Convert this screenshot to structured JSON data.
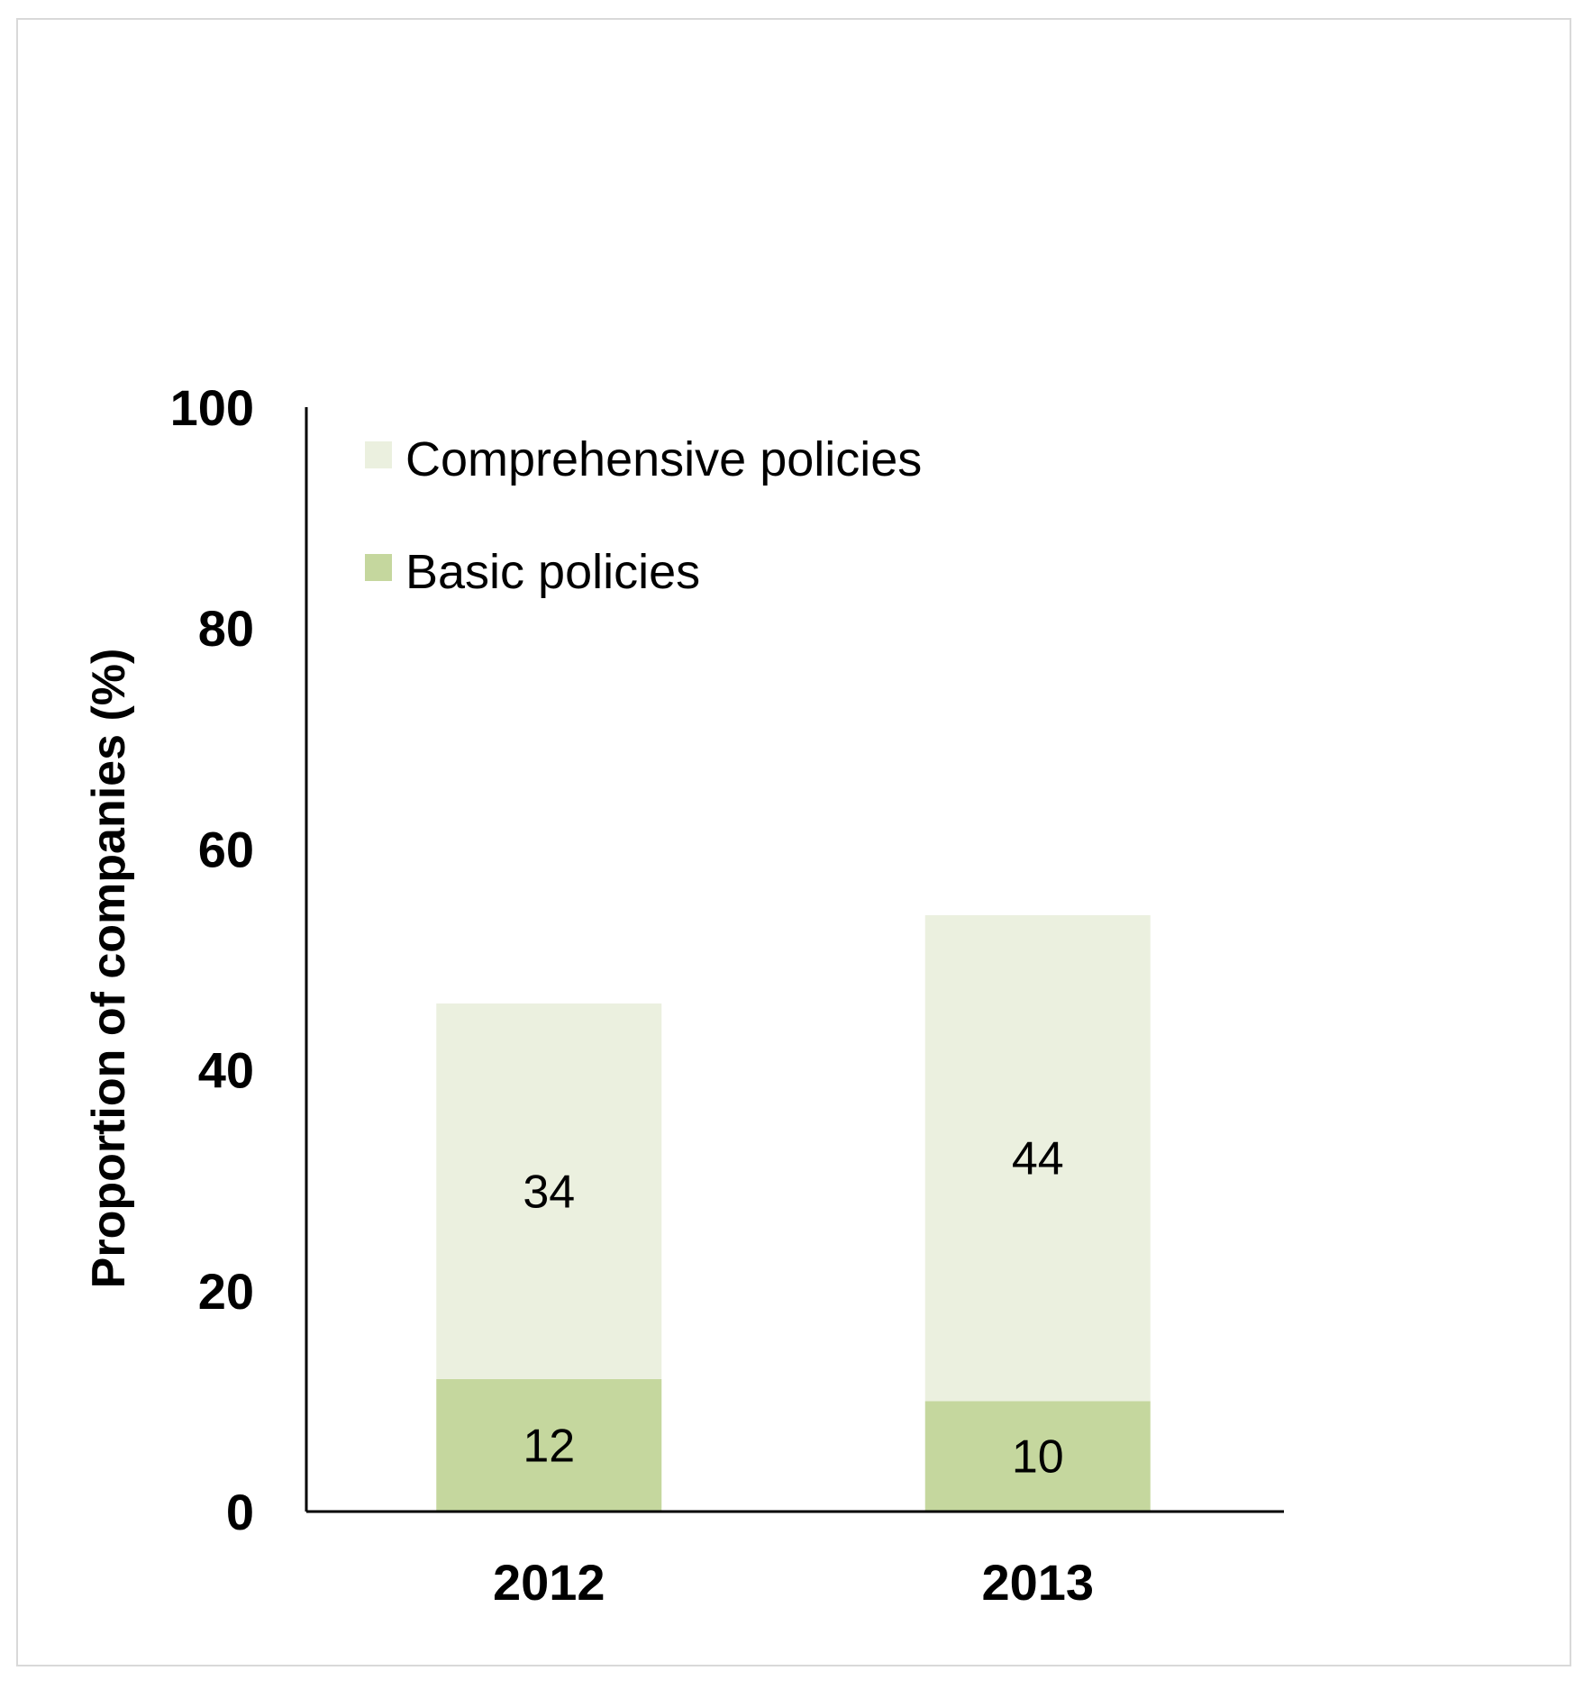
{
  "chart_data": {
    "type": "bar",
    "stacked": true,
    "title": "",
    "xlabel": "",
    "ylabel": "Proportion of companies (%)",
    "ylim": [
      0,
      100
    ],
    "yticks": [
      "0",
      "20",
      "40",
      "60",
      "80",
      "100"
    ],
    "grid": false,
    "legend_position": "top-left",
    "categories": [
      "2012",
      "2013"
    ],
    "series": [
      {
        "name": "Basic policies",
        "values": [
          12,
          10
        ],
        "color": "#c5d79e",
        "labels": [
          "12",
          "10"
        ]
      },
      {
        "name": "Comprehensive policies",
        "values": [
          34,
          44
        ],
        "color": "#ebf0df",
        "labels": [
          "34",
          "44"
        ]
      }
    ],
    "legend_order": [
      "Comprehensive policies",
      "Basic policies"
    ]
  }
}
